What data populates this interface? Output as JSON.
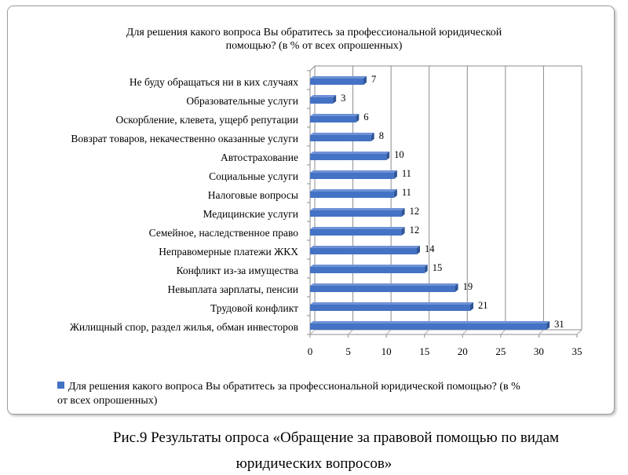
{
  "chart_data": {
    "type": "bar",
    "orientation": "horizontal",
    "title": "Для решения какого вопроса Вы обратитесь за профессиональной юридической помощью? (в % от всех опрошенных)",
    "title_lines": [
      "Для решения какого вопроса Вы обратитесь за профессиональной юридической",
      "помощью? (в % от всех опрошенных)"
    ],
    "categories": [
      "Не буду обращаться ни в ких случаях",
      "Образовательные услуги",
      "Оскорбление, клевета, ущерб репутации",
      "Вовзрат товаров, некачественно оказанные услуги",
      "Автострахование",
      "Социальные услуги",
      "Налоговые вопросы",
      "Медицинские услуги",
      "Семейное, наследственное право",
      "Неправомерные платежи ЖКХ",
      "Конфликт из-за имущества",
      "Невыплата зарплаты, пенсии",
      "Трудовой конфликт",
      "Жилищный спор, раздел жилья, обман инвесторов"
    ],
    "values": [
      7,
      3,
      6,
      8,
      10,
      11,
      11,
      12,
      12,
      14,
      15,
      19,
      21,
      31
    ],
    "xlim": [
      0,
      35
    ],
    "xticks": [
      0,
      5,
      10,
      15,
      20,
      25,
      30,
      35
    ],
    "grid": true,
    "series_color": "#4472C4",
    "legend_lines": [
      "Для решения какого вопроса Вы обратитесь за профессиональной юридической помощью? (в %",
      "от всех опрошенных)"
    ],
    "legend_position": "bottom"
  },
  "caption": {
    "line1": "Рис.9 Результаты опроса  «Обращение за правовой помощью по видам",
    "line2": "юридических вопросов»"
  }
}
